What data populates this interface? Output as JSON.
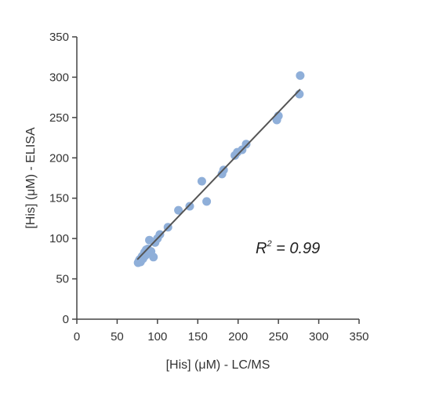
{
  "chart_data": {
    "type": "scatter",
    "xlabel": "[His] (μM) - LC/MS",
    "ylabel": "[His] (μM) - ELISA",
    "xlim": [
      0,
      350
    ],
    "ylim": [
      0,
      350
    ],
    "xticks": [
      0,
      50,
      100,
      150,
      200,
      250,
      300,
      350
    ],
    "yticks": [
      0,
      50,
      100,
      150,
      200,
      250,
      300,
      350
    ],
    "grid": false,
    "point_color": "#8fafd9",
    "line_color": "#555555",
    "annotation": {
      "r_symbol": "R",
      "r_exponent": "2",
      "r_value_text": " = 0.99"
    },
    "trendline": {
      "x": [
        75,
        277
      ],
      "y": [
        74,
        285
      ]
    },
    "points": [
      {
        "x": 76,
        "y": 70
      },
      {
        "x": 77,
        "y": 72
      },
      {
        "x": 78,
        "y": 74
      },
      {
        "x": 79,
        "y": 71
      },
      {
        "x": 80,
        "y": 76
      },
      {
        "x": 81,
        "y": 78
      },
      {
        "x": 82,
        "y": 75
      },
      {
        "x": 83,
        "y": 80
      },
      {
        "x": 84,
        "y": 83
      },
      {
        "x": 85,
        "y": 79
      },
      {
        "x": 86,
        "y": 86
      },
      {
        "x": 87,
        "y": 82
      },
      {
        "x": 88,
        "y": 87
      },
      {
        "x": 89,
        "y": 85
      },
      {
        "x": 90,
        "y": 98
      },
      {
        "x": 92,
        "y": 84
      },
      {
        "x": 95,
        "y": 77
      },
      {
        "x": 97,
        "y": 95
      },
      {
        "x": 100,
        "y": 100
      },
      {
        "x": 103,
        "y": 105
      },
      {
        "x": 113,
        "y": 114
      },
      {
        "x": 126,
        "y": 135
      },
      {
        "x": 140,
        "y": 140
      },
      {
        "x": 155,
        "y": 171
      },
      {
        "x": 161,
        "y": 146
      },
      {
        "x": 180,
        "y": 180
      },
      {
        "x": 182,
        "y": 185
      },
      {
        "x": 196,
        "y": 203
      },
      {
        "x": 199,
        "y": 207
      },
      {
        "x": 205,
        "y": 210
      },
      {
        "x": 210,
        "y": 217
      },
      {
        "x": 248,
        "y": 247
      },
      {
        "x": 250,
        "y": 252
      },
      {
        "x": 276,
        "y": 279
      },
      {
        "x": 277,
        "y": 302
      }
    ]
  }
}
